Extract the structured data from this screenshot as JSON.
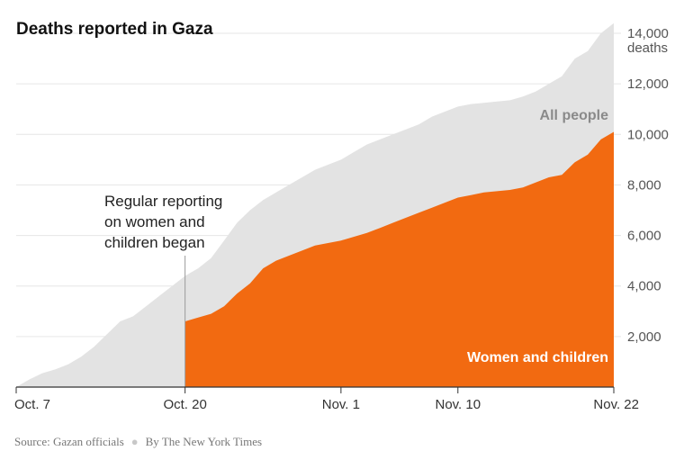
{
  "chart_data": {
    "type": "area",
    "title": "Deaths reported in Gaza",
    "x_ticks": [
      {
        "day": 0,
        "label": "Oct. 7"
      },
      {
        "day": 13,
        "label": "Oct. 20"
      },
      {
        "day": 25,
        "label": "Nov. 1"
      },
      {
        "day": 34,
        "label": "Nov. 10"
      },
      {
        "day": 46,
        "label": "Nov. 22"
      }
    ],
    "y_ticks": [
      {
        "value": 2000,
        "label": "2,000"
      },
      {
        "value": 4000,
        "label": "4,000"
      },
      {
        "value": 6000,
        "label": "6,000"
      },
      {
        "value": 8000,
        "label": "8,000"
      },
      {
        "value": 10000,
        "label": "10,000"
      },
      {
        "value": 12000,
        "label": "12,000"
      },
      {
        "value": 14000,
        "label": "14,000"
      }
    ],
    "y_unit": "deaths",
    "xlim": [
      0,
      46
    ],
    "ylim": [
      0,
      14000
    ],
    "grid": true,
    "series": [
      {
        "name": "All people",
        "color": "#e3e3e3",
        "points": [
          [
            0,
            0
          ],
          [
            1,
            300
          ],
          [
            2,
            550
          ],
          [
            3,
            700
          ],
          [
            4,
            900
          ],
          [
            5,
            1200
          ],
          [
            6,
            1600
          ],
          [
            7,
            2100
          ],
          [
            8,
            2600
          ],
          [
            9,
            2800
          ],
          [
            10,
            3200
          ],
          [
            11,
            3600
          ],
          [
            12,
            4000
          ],
          [
            13,
            4400
          ],
          [
            14,
            4700
          ],
          [
            15,
            5100
          ],
          [
            16,
            5800
          ],
          [
            17,
            6500
          ],
          [
            18,
            7000
          ],
          [
            19,
            7400
          ],
          [
            20,
            7700
          ],
          [
            21,
            8000
          ],
          [
            22,
            8300
          ],
          [
            23,
            8600
          ],
          [
            24,
            8800
          ],
          [
            25,
            9000
          ],
          [
            26,
            9300
          ],
          [
            27,
            9600
          ],
          [
            28,
            9800
          ],
          [
            29,
            10000
          ],
          [
            30,
            10200
          ],
          [
            31,
            10400
          ],
          [
            32,
            10700
          ],
          [
            33,
            10900
          ],
          [
            34,
            11100
          ],
          [
            35,
            11200
          ],
          [
            36,
            11250
          ],
          [
            37,
            11300
          ],
          [
            38,
            11350
          ],
          [
            39,
            11500
          ],
          [
            40,
            11700
          ],
          [
            41,
            12000
          ],
          [
            42,
            12300
          ],
          [
            43,
            13000
          ],
          [
            44,
            13300
          ],
          [
            45,
            14000
          ],
          [
            46,
            14400
          ]
        ]
      },
      {
        "name": "Women and children",
        "color": "#f26a11",
        "points": [
          [
            13,
            2600
          ],
          [
            14,
            2750
          ],
          [
            15,
            2900
          ],
          [
            16,
            3200
          ],
          [
            17,
            3700
          ],
          [
            18,
            4100
          ],
          [
            19,
            4700
          ],
          [
            20,
            5000
          ],
          [
            21,
            5200
          ],
          [
            22,
            5400
          ],
          [
            23,
            5600
          ],
          [
            24,
            5700
          ],
          [
            25,
            5800
          ],
          [
            26,
            5950
          ],
          [
            27,
            6100
          ],
          [
            28,
            6300
          ],
          [
            29,
            6500
          ],
          [
            30,
            6700
          ],
          [
            31,
            6900
          ],
          [
            32,
            7100
          ],
          [
            33,
            7300
          ],
          [
            34,
            7500
          ],
          [
            35,
            7600
          ],
          [
            36,
            7700
          ],
          [
            37,
            7750
          ],
          [
            38,
            7800
          ],
          [
            39,
            7900
          ],
          [
            40,
            8100
          ],
          [
            41,
            8300
          ],
          [
            42,
            8400
          ],
          [
            43,
            8900
          ],
          [
            44,
            9200
          ],
          [
            45,
            9800
          ],
          [
            46,
            10100
          ]
        ]
      }
    ],
    "annotation": {
      "day": 13,
      "lines": [
        "Regular reporting",
        "on women and",
        "children began"
      ]
    }
  },
  "source": {
    "source_text": "Source: Gazan officials",
    "byline": "By The New York Times"
  }
}
